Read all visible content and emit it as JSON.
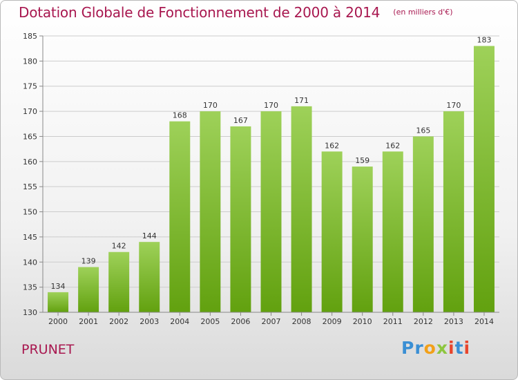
{
  "title": "Dotation Globale de Fonctionnement de 2000 à 2014",
  "subtitle": "(en milliers d'€)",
  "commune": "PRUNET",
  "logo": {
    "letters": [
      {
        "ch": "P",
        "color": "#3a8fd4"
      },
      {
        "ch": "r",
        "color": "#3a8fd4"
      },
      {
        "ch": "o",
        "color": "#f2a019"
      },
      {
        "ch": "x",
        "color": "#8dc63f"
      },
      {
        "ch": "i",
        "color": "#e8452c"
      },
      {
        "ch": "t",
        "color": "#3a8fd4"
      },
      {
        "ch": "i",
        "color": "#e8452c"
      }
    ]
  },
  "colors": {
    "bar_top": "#9ed159",
    "bar_bottom": "#62a10f",
    "title": "#a8174f",
    "grid": "#cccccc"
  },
  "chart_data": {
    "type": "bar",
    "categories": [
      "2000",
      "2001",
      "2002",
      "2003",
      "2004",
      "2005",
      "2006",
      "2007",
      "2008",
      "2009",
      "2010",
      "2011",
      "2012",
      "2013",
      "2014"
    ],
    "values": [
      134,
      139,
      142,
      144,
      168,
      170,
      167,
      170,
      171,
      162,
      159,
      162,
      165,
      170,
      183
    ],
    "title": "Dotation Globale de Fonctionnement de 2000 à 2014",
    "subtitle": "(en milliers d'€)",
    "xlabel": "",
    "ylabel": "",
    "ylim": [
      130,
      185
    ],
    "yticks": [
      130,
      135,
      140,
      145,
      150,
      155,
      160,
      165,
      170,
      175,
      180,
      185
    ],
    "grid": true
  }
}
